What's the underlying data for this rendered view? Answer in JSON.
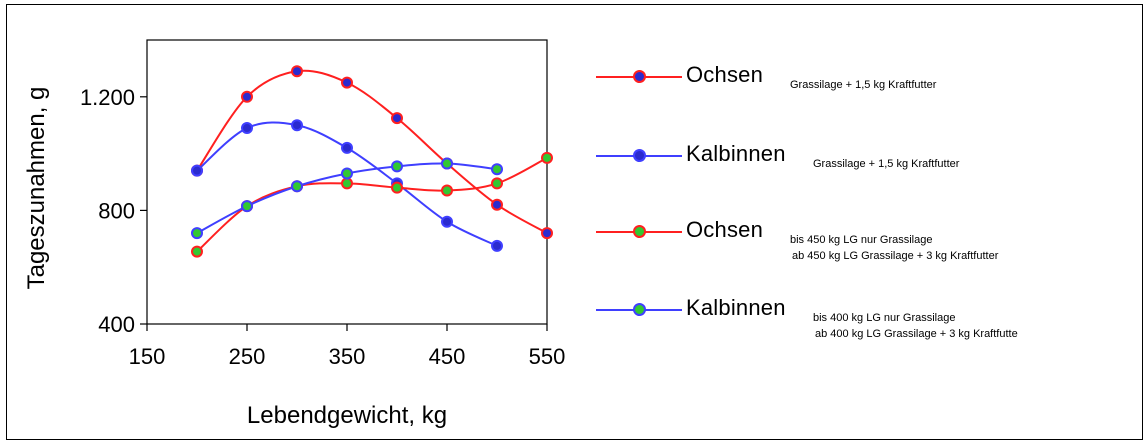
{
  "chart_data": {
    "type": "line",
    "title": "",
    "xlabel": "Lebendgewicht, kg",
    "ylabel": "Tageszunahmen, g",
    "xlim": [
      150,
      550
    ],
    "ylim": [
      400,
      1400
    ],
    "x_ticks": [
      150,
      250,
      350,
      450,
      550
    ],
    "x_tick_labels": [
      "150",
      "250",
      "350",
      "450",
      "550"
    ],
    "y_ticks": [
      400,
      800,
      1200
    ],
    "y_tick_labels": [
      "400",
      "800",
      "1.200"
    ],
    "grid": false,
    "legend_position": "right",
    "series": [
      {
        "name": "Ochsen",
        "subtitle_lines": [
          "Grassilage + 1,5 kg Kraftfutter"
        ],
        "line_color": "#ff2020",
        "marker_color": "#2b2bcf",
        "x": [
          200,
          250,
          300,
          350,
          400,
          450,
          500,
          550
        ],
        "y": [
          940,
          1200,
          1290,
          1250,
          1125,
          965,
          820,
          720
        ]
      },
      {
        "name": "Kalbinnen",
        "subtitle_lines": [
          "Grassilage + 1,5 kg Kraftfutter"
        ],
        "line_color": "#3f3fff",
        "marker_color": "#2b2bcf",
        "x": [
          200,
          250,
          300,
          350,
          400,
          450,
          500
        ],
        "y": [
          940,
          1090,
          1100,
          1020,
          895,
          760,
          675
        ]
      },
      {
        "name": "Ochsen",
        "subtitle_lines": [
          "bis 450 kg LG nur Grassilage",
          "ab 450 kg LG Grassilage + 3 kg Kraftfutter"
        ],
        "line_color": "#ff2020",
        "marker_color": "#32c832",
        "x": [
          200,
          250,
          300,
          350,
          400,
          450,
          500,
          550
        ],
        "y": [
          655,
          815,
          885,
          895,
          880,
          870,
          895,
          985
        ]
      },
      {
        "name": "Kalbinnen",
        "subtitle_lines": [
          "bis 400 kg LG nur Grassilage",
          "ab 400 kg LG Grassilage + 3 kg Kraftfutte"
        ],
        "line_color": "#3f3fff",
        "marker_color": "#32c832",
        "x": [
          200,
          250,
          300,
          350,
          400,
          450,
          500
        ],
        "y": [
          720,
          815,
          885,
          930,
          955,
          965,
          945
        ]
      }
    ]
  }
}
